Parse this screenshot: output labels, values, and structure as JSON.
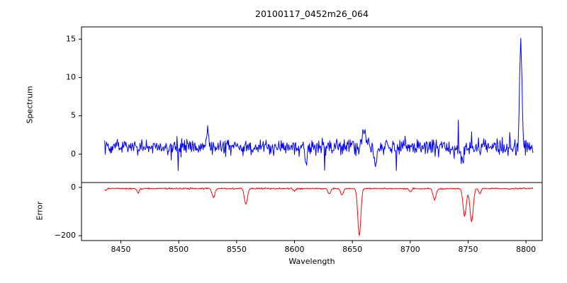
{
  "figure": {
    "background": "#ffffff",
    "axis_color": "#000000"
  },
  "chart_data": {
    "type": "line",
    "title": "20100117_0452m26_064",
    "xlabel": "Wavelength",
    "legend": "none",
    "grid": false,
    "x_range": [
      8436,
      8806
    ],
    "x_step": 0.5,
    "xlim": [
      8416,
      8814
    ],
    "x_ticks": [
      8450,
      8500,
      8550,
      8600,
      8650,
      8700,
      8750,
      8800
    ],
    "panels": [
      {
        "name": "spectrum",
        "ylabel": "Spectrum",
        "color": "#0000ff",
        "ylim": [
          -3.7,
          16.6
        ],
        "y_ticks": [
          0,
          5,
          10,
          15
        ],
        "baseline": 0.9,
        "noise_amp": 1.0,
        "spike_chance": 0.02,
        "spike_amp": 4,
        "seed": 20100117,
        "features": [
          {
            "x": 8795.5,
            "amp": 14.0,
            "width": 1.0,
            "note": "emission spike peak ~15.1"
          },
          {
            "x": 8670,
            "amp": -3.0,
            "width": 1.0,
            "note": "deepest dip ~-2.3"
          },
          {
            "x": 8745,
            "amp": -2.0,
            "width": 1.0
          },
          {
            "x": 8525,
            "amp": 2.2,
            "width": 1.0
          },
          {
            "x": 8660,
            "amp": 2.0,
            "width": 1.5
          },
          {
            "x": 8610,
            "amp": -1.8,
            "width": 1.0
          }
        ]
      },
      {
        "name": "error",
        "ylabel": "Error",
        "color": "#ff0000",
        "ylim": [
          -220,
          20
        ],
        "y_ticks": [
          0,
          -200
        ],
        "baseline": -5,
        "noise_amp": 3.0,
        "spike_chance": 0.0,
        "spike_amp": 0,
        "seed": 452,
        "features": [
          {
            "x": 8437,
            "amp": -8,
            "width": 0.8
          },
          {
            "x": 8465,
            "amp": -18,
            "width": 1.0
          },
          {
            "x": 8530,
            "amp": -38,
            "width": 1.2
          },
          {
            "x": 8558,
            "amp": -65,
            "width": 1.3
          },
          {
            "x": 8600,
            "amp": -10,
            "width": 1.0
          },
          {
            "x": 8630,
            "amp": -22,
            "width": 1.1
          },
          {
            "x": 8641,
            "amp": -28,
            "width": 1.1
          },
          {
            "x": 8656,
            "amp": -195,
            "width": 1.3,
            "note": "deep dip reaching ~-200"
          },
          {
            "x": 8700,
            "amp": -12,
            "width": 1.0
          },
          {
            "x": 8721,
            "amp": -45,
            "width": 1.3
          },
          {
            "x": 8747,
            "amp": -115,
            "width": 1.4
          },
          {
            "x": 8753,
            "amp": -135,
            "width": 1.4
          },
          {
            "x": 8760,
            "amp": -20,
            "width": 1.0
          }
        ]
      }
    ]
  }
}
